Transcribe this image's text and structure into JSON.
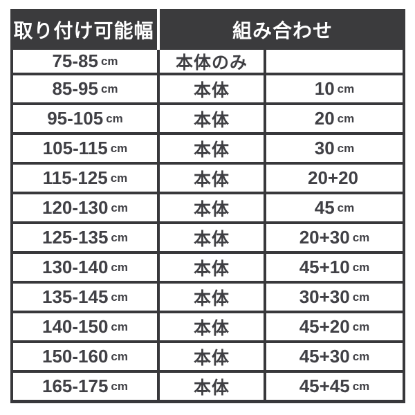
{
  "colors": {
    "header_bg": "#3b3b3d",
    "header_text": "#ffffff",
    "border": "#38383b",
    "cell_bg": "#ffffff",
    "cell_text": "#404045"
  },
  "table": {
    "header_width": "取り付け可能幅",
    "header_combination": "組み合わせ",
    "rows": [
      {
        "range": "75-85",
        "range_unit": "cm",
        "body": "本体のみ",
        "attachment": "",
        "attachment_unit": ""
      },
      {
        "range": "85-95",
        "range_unit": "cm",
        "body": "本体",
        "attachment": "10",
        "attachment_unit": "cm"
      },
      {
        "range": "95-105",
        "range_unit": "cm",
        "body": "本体",
        "attachment": "20",
        "attachment_unit": "cm"
      },
      {
        "range": "105-115",
        "range_unit": "cm",
        "body": "本体",
        "attachment": "30",
        "attachment_unit": "cm"
      },
      {
        "range": "115-125",
        "range_unit": "cm",
        "body": "本体",
        "attachment": "20+20",
        "attachment_unit": ""
      },
      {
        "range": "120-130",
        "range_unit": "cm",
        "body": "本体",
        "attachment": "45",
        "attachment_unit": "cm"
      },
      {
        "range": "125-135",
        "range_unit": "cm",
        "body": "本体",
        "attachment": "20+30",
        "attachment_unit": "cm"
      },
      {
        "range": "130-140",
        "range_unit": "cm",
        "body": "本体",
        "attachment": "45+10",
        "attachment_unit": "cm"
      },
      {
        "range": "135-145",
        "range_unit": "cm",
        "body": "本体",
        "attachment": "30+30",
        "attachment_unit": "cm"
      },
      {
        "range": "140-150",
        "range_unit": "cm",
        "body": "本体",
        "attachment": "45+20",
        "attachment_unit": "cm"
      },
      {
        "range": "150-160",
        "range_unit": "cm",
        "body": "本体",
        "attachment": "45+30",
        "attachment_unit": "cm"
      },
      {
        "range": "165-175",
        "range_unit": "cm",
        "body": "本体",
        "attachment": "45+45",
        "attachment_unit": "cm"
      }
    ]
  },
  "chart_data": {
    "type": "table",
    "title": "",
    "header": [
      "取り付け可能幅",
      "組み合わせ"
    ],
    "header_spans": [
      1,
      2
    ],
    "rows": [
      [
        "75-85 cm",
        "本体のみ",
        ""
      ],
      [
        "85-95 cm",
        "本体",
        "10 cm"
      ],
      [
        "95-105 cm",
        "本体",
        "20 cm"
      ],
      [
        "105-115 cm",
        "本体",
        "30 cm"
      ],
      [
        "115-125 cm",
        "本体",
        "20+20"
      ],
      [
        "120-130 cm",
        "本体",
        "45 cm"
      ],
      [
        "125-135 cm",
        "本体",
        "20+30 cm"
      ],
      [
        "130-140 cm",
        "本体",
        "45+10 cm"
      ],
      [
        "135-145 cm",
        "本体",
        "30+30 cm"
      ],
      [
        "140-150 cm",
        "本体",
        "45+20 cm"
      ],
      [
        "150-160 cm",
        "本体",
        "45+30 cm"
      ],
      [
        "165-175 cm",
        "本体",
        "45+45 cm"
      ]
    ]
  }
}
